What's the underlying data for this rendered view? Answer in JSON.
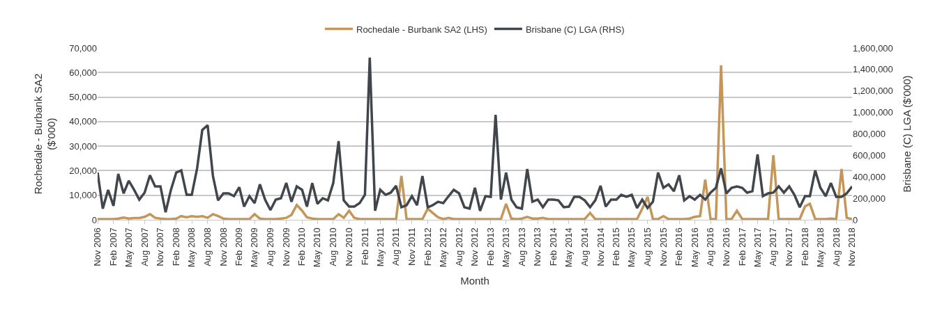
{
  "chart_data": {
    "type": "line",
    "xlabel": "Month",
    "ylabel": "Rochedale - Burbank SA2 ($'000)",
    "y2label": "Brisbane (C) LGA ($'000)",
    "x": [
      "2006-11",
      "2006-12",
      "2007-01",
      "2007-02",
      "2007-03",
      "2007-04",
      "2007-05",
      "2007-06",
      "2007-07",
      "2007-08",
      "2007-09",
      "2007-10",
      "2007-11",
      "2007-12",
      "2008-01",
      "2008-02",
      "2008-03",
      "2008-04",
      "2008-05",
      "2008-06",
      "2008-07",
      "2008-08",
      "2008-09",
      "2008-10",
      "2008-11",
      "2008-12",
      "2009-01",
      "2009-02",
      "2009-03",
      "2009-04",
      "2009-05",
      "2009-06",
      "2009-07",
      "2009-08",
      "2009-09",
      "2009-10",
      "2009-11",
      "2009-12",
      "2010-01",
      "2010-02",
      "2010-03",
      "2010-04",
      "2010-05",
      "2010-06",
      "2010-07",
      "2010-08",
      "2010-09",
      "2010-10",
      "2010-11",
      "2010-12",
      "2011-01",
      "2011-02",
      "2011-03",
      "2011-04",
      "2011-05",
      "2011-06",
      "2011-07",
      "2011-08",
      "2011-09",
      "2011-10",
      "2011-11",
      "2011-12",
      "2012-01",
      "2012-02",
      "2012-03",
      "2012-04",
      "2012-05",
      "2012-06",
      "2012-07",
      "2012-08",
      "2012-09",
      "2012-10",
      "2012-11",
      "2012-12",
      "2013-01",
      "2013-02",
      "2013-03",
      "2013-04",
      "2013-05",
      "2013-06",
      "2013-07",
      "2013-08",
      "2013-09",
      "2013-10",
      "2013-11",
      "2013-12",
      "2014-01",
      "2014-02",
      "2014-03",
      "2014-04",
      "2014-05",
      "2014-06",
      "2014-07",
      "2014-08",
      "2014-09",
      "2014-10",
      "2014-11",
      "2014-12",
      "2015-01",
      "2015-02",
      "2015-03",
      "2015-04",
      "2015-05",
      "2015-06",
      "2015-07",
      "2015-08",
      "2015-09",
      "2015-10",
      "2015-11",
      "2015-12",
      "2016-01",
      "2016-02",
      "2016-03",
      "2016-04",
      "2016-05",
      "2016-06",
      "2016-07",
      "2016-08",
      "2016-09",
      "2016-10",
      "2016-11",
      "2016-12",
      "2017-01",
      "2017-02",
      "2017-03",
      "2017-04",
      "2017-05",
      "2017-06",
      "2017-07",
      "2017-08",
      "2017-09",
      "2017-10",
      "2017-11",
      "2017-12",
      "2018-01",
      "2018-02",
      "2018-03",
      "2018-04",
      "2018-05",
      "2018-06",
      "2018-07",
      "2018-08",
      "2018-09",
      "2018-10",
      "2018-11"
    ],
    "series": [
      {
        "name": "Rochedale - Burbank SA2 (LHS)",
        "color": "#c4965a",
        "values": [
          300,
          300,
          300,
          300,
          500,
          900,
          500,
          700,
          700,
          1200,
          2300,
          800,
          500,
          300,
          300,
          500,
          1500,
          1000,
          1500,
          1200,
          1500,
          800,
          2300,
          1500,
          500,
          300,
          300,
          300,
          300,
          300,
          2300,
          500,
          300,
          300,
          300,
          500,
          800,
          2000,
          6000,
          3700,
          1000,
          500,
          300,
          300,
          300,
          300,
          2300,
          800,
          3700,
          800,
          300,
          300,
          300,
          300,
          300,
          300,
          300,
          300,
          17900,
          300,
          300,
          300,
          300,
          4500,
          2800,
          1000,
          300,
          800,
          300,
          300,
          300,
          300,
          300,
          300,
          300,
          300,
          300,
          300,
          6500,
          500,
          300,
          500,
          1200,
          500,
          500,
          800,
          300,
          300,
          300,
          300,
          300,
          300,
          300,
          300,
          2800,
          300,
          300,
          300,
          300,
          300,
          300,
          300,
          300,
          300,
          4500,
          9300,
          300,
          300,
          1500,
          300,
          300,
          300,
          300,
          500,
          1200,
          1500,
          16400,
          300,
          300,
          63000,
          300,
          300,
          3700,
          300,
          300,
          300,
          300,
          300,
          300,
          26300,
          300,
          300,
          300,
          300,
          300,
          5500,
          6500,
          300,
          300,
          300,
          500,
          300,
          20700,
          800,
          300
        ]
      },
      {
        "name": "Brisbane (C) LGA (RHS)",
        "color": "#41464d",
        "axis": "y2",
        "values": [
          440000,
          104000,
          279000,
          130000,
          428000,
          246000,
          363000,
          279000,
          188000,
          253000,
          415000,
          311000,
          311000,
          71000,
          279000,
          440000,
          460000,
          233000,
          233000,
          479000,
          836000,
          881000,
          408000,
          181000,
          246000,
          246000,
          220000,
          304000,
          123000,
          220000,
          155000,
          330000,
          188000,
          91000,
          188000,
          201000,
          343000,
          168000,
          311000,
          279000,
          123000,
          343000,
          149000,
          201000,
          181000,
          343000,
          732000,
          181000,
          123000,
          123000,
          155000,
          233000,
          1510000,
          84000,
          279000,
          233000,
          253000,
          317000,
          117000,
          136000,
          220000,
          136000,
          408000,
          117000,
          136000,
          168000,
          155000,
          220000,
          279000,
          246000,
          117000,
          104000,
          298000,
          84000,
          220000,
          214000,
          978000,
          188000,
          440000,
          188000,
          117000,
          104000,
          473000,
          168000,
          188000,
          117000,
          188000,
          188000,
          181000,
          117000,
          123000,
          214000,
          214000,
          181000,
          117000,
          181000,
          317000,
          123000,
          188000,
          188000,
          233000,
          214000,
          233000,
          110000,
          188000,
          110000,
          168000,
          440000,
          298000,
          330000,
          266000,
          415000,
          181000,
          220000,
          188000,
          233000,
          188000,
          253000,
          298000,
          479000,
          246000,
          298000,
          311000,
          298000,
          253000,
          266000,
          609000,
          220000,
          246000,
          253000,
          311000,
          253000,
          311000,
          233000,
          117000,
          220000,
          220000,
          460000,
          298000,
          220000,
          343000,
          214000,
          214000,
          246000,
          311000
        ]
      }
    ],
    "ylim": [
      0,
      70000
    ],
    "yticks": [
      {
        "value": 0,
        "label": "0"
      },
      {
        "value": 10000,
        "label": "10,000"
      },
      {
        "value": 20000,
        "label": "20,000"
      },
      {
        "value": 30000,
        "label": "30,000"
      },
      {
        "value": 40000,
        "label": "40,000"
      },
      {
        "value": 50000,
        "label": "50,000"
      },
      {
        "value": 60000,
        "label": "60,000"
      },
      {
        "value": 70000,
        "label": "70,000"
      }
    ],
    "y2lim": [
      0,
      1600000
    ],
    "y2ticks": [
      {
        "value": 0,
        "label": "0"
      },
      {
        "value": 200000,
        "label": "200,000"
      },
      {
        "value": 400000,
        "label": "400,000"
      },
      {
        "value": 600000,
        "label": "600,000"
      },
      {
        "value": 800000,
        "label": "800,000"
      },
      {
        "value": 1000000,
        "label": "1,000,000"
      },
      {
        "value": 1200000,
        "label": "1,200,000"
      },
      {
        "value": 1400000,
        "label": "1,400,000"
      },
      {
        "value": 1600000,
        "label": "1,600,000"
      }
    ],
    "xlim": [
      "2006-11",
      "2018-11"
    ],
    "xticks": [
      {
        "value": "2006-11",
        "label": "Nov 2006"
      },
      {
        "value": "2007-02",
        "label": "Feb 2007"
      },
      {
        "value": "2007-05",
        "label": "May 2007"
      },
      {
        "value": "2007-08",
        "label": "Aug 2007"
      },
      {
        "value": "2007-11",
        "label": "Nov 2007"
      },
      {
        "value": "2008-02",
        "label": "Feb 2008"
      },
      {
        "value": "2008-05",
        "label": "May 2008"
      },
      {
        "value": "2008-08",
        "label": "Aug 2008"
      },
      {
        "value": "2008-11",
        "label": "Nov 2008"
      },
      {
        "value": "2009-02",
        "label": "Feb 2009"
      },
      {
        "value": "2009-05",
        "label": "May 2009"
      },
      {
        "value": "2009-08",
        "label": "Aug 2009"
      },
      {
        "value": "2009-11",
        "label": "Nov 2009"
      },
      {
        "value": "2010-02",
        "label": "Feb 2010"
      },
      {
        "value": "2010-05",
        "label": "May 2010"
      },
      {
        "value": "2010-08",
        "label": "Aug 2010"
      },
      {
        "value": "2010-11",
        "label": "Nov 2010"
      },
      {
        "value": "2011-02",
        "label": "Feb 2011"
      },
      {
        "value": "2011-05",
        "label": "May 2011"
      },
      {
        "value": "2011-08",
        "label": "Aug 2011"
      },
      {
        "value": "2011-11",
        "label": "Nov 2011"
      },
      {
        "value": "2012-02",
        "label": "Feb 2012"
      },
      {
        "value": "2012-05",
        "label": "May 2012"
      },
      {
        "value": "2012-08",
        "label": "Aug 2012"
      },
      {
        "value": "2012-11",
        "label": "Nov 2012"
      },
      {
        "value": "2013-02",
        "label": "Feb 2013"
      },
      {
        "value": "2013-05",
        "label": "May 2013"
      },
      {
        "value": "2013-08",
        "label": "Aug 2013"
      },
      {
        "value": "2013-11",
        "label": "Nov 2013"
      },
      {
        "value": "2014-02",
        "label": "Feb 2014"
      },
      {
        "value": "2014-05",
        "label": "May 2014"
      },
      {
        "value": "2014-08",
        "label": "Aug 2014"
      },
      {
        "value": "2014-11",
        "label": "Nov 2014"
      },
      {
        "value": "2015-02",
        "label": "Feb 2015"
      },
      {
        "value": "2015-05",
        "label": "May 2015"
      },
      {
        "value": "2015-08",
        "label": "Aug 2015"
      },
      {
        "value": "2015-11",
        "label": "Nov 2015"
      },
      {
        "value": "2016-02",
        "label": "Feb 2016"
      },
      {
        "value": "2016-05",
        "label": "May 2016"
      },
      {
        "value": "2016-08",
        "label": "Aug 2016"
      },
      {
        "value": "2016-11",
        "label": "Nov 2016"
      },
      {
        "value": "2017-02",
        "label": "Feb 2017"
      },
      {
        "value": "2017-05",
        "label": "May 2017"
      },
      {
        "value": "2017-08",
        "label": "Aug 2017"
      },
      {
        "value": "2017-11",
        "label": "Nov 2017"
      },
      {
        "value": "2018-02",
        "label": "Feb 2018"
      },
      {
        "value": "2018-05",
        "label": "May 2018"
      },
      {
        "value": "2018-08",
        "label": "Aug 2018"
      },
      {
        "value": "2018-11",
        "label": "Nov 2018"
      }
    ],
    "grid": "y",
    "legend": "top",
    "marker": "none",
    "line_style": "solid"
  }
}
